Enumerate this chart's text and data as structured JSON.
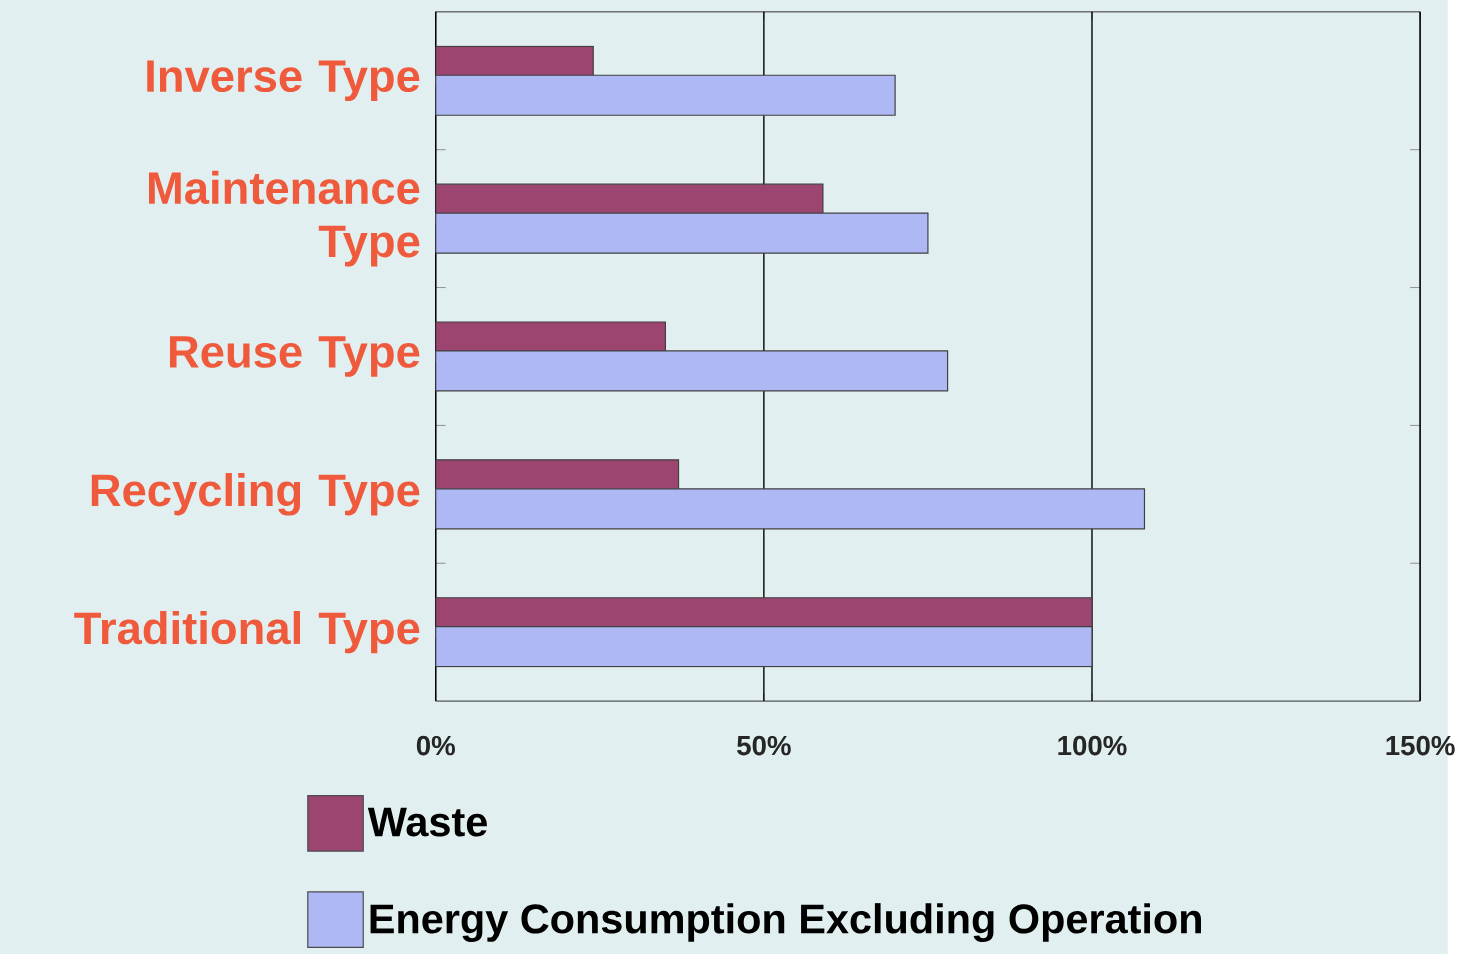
{
  "chart_data": {
    "type": "bar",
    "orientation": "horizontal",
    "categories": [
      "Inverse Type",
      "Maintenance Type",
      "Reuse Type",
      "Recycling Type",
      "Traditional Type"
    ],
    "series": [
      {
        "name": "Waste",
        "color": "#9c4571",
        "values": [
          24,
          59,
          35,
          37,
          100
        ]
      },
      {
        "name": "Energy Consumption Excluding Operation",
        "color": "#adb8f5",
        "values": [
          70,
          75,
          78,
          108,
          100
        ]
      }
    ],
    "xlim": [
      0,
      150
    ],
    "xticks": [
      {
        "value": 0,
        "label": "0%"
      },
      {
        "value": 50,
        "label": "50%"
      },
      {
        "value": 100,
        "label": "100%"
      },
      {
        "value": 150,
        "label": "150%"
      }
    ],
    "grid": "x",
    "legend": "bottom"
  }
}
